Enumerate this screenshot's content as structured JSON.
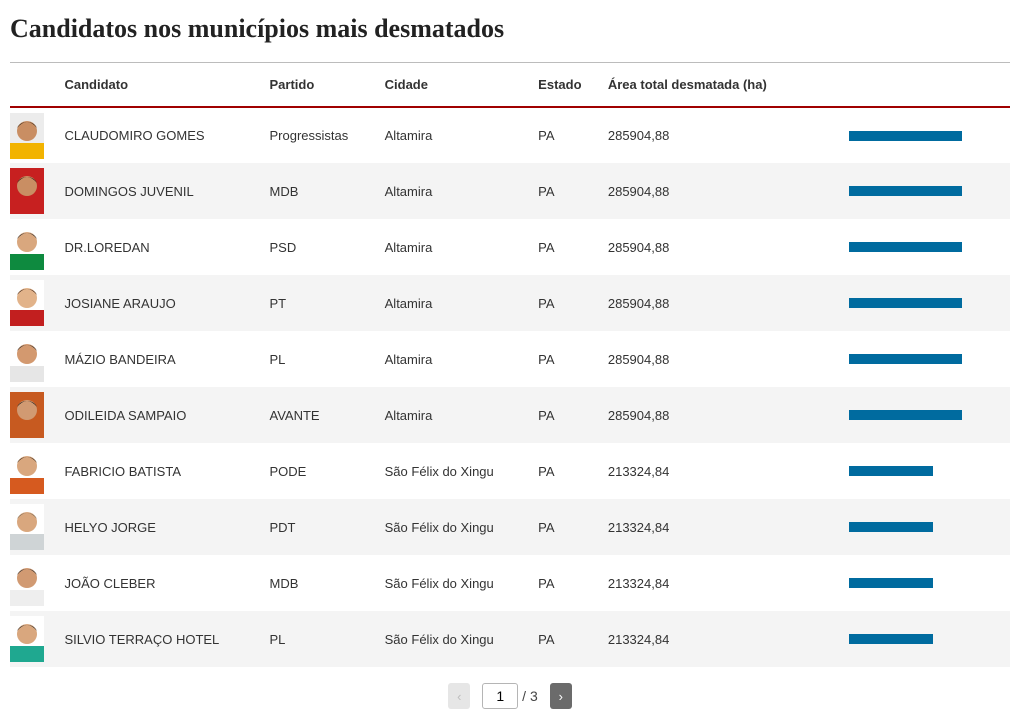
{
  "title": "Candidatos nos municípios mais desmatados",
  "columns": {
    "photo": "",
    "candidate": "Candidato",
    "party": "Partido",
    "city": "Cidade",
    "state": "Estado",
    "area": "Área total desmatada (ha)",
    "bar": ""
  },
  "bar_max_value": 380000,
  "bar_color": "#006b9f",
  "header_underline_color": "#a00000",
  "row_alt_bg": "#f4f4f4",
  "rows": [
    {
      "candidate": "CLAUDOMIRO GOMES",
      "party": "Progressistas",
      "city": "Altamira",
      "state": "PA",
      "area_value": 285904.88,
      "area_text": "285904,88",
      "avatar": {
        "shirt": "#f2b300",
        "skin": "#c98e63",
        "hair": "#3a2a1a",
        "bg": "#ececec"
      }
    },
    {
      "candidate": "DOMINGOS JUVENIL",
      "party": "MDB",
      "city": "Altamira",
      "state": "PA",
      "area_value": 285904.88,
      "area_text": "285904,88",
      "avatar": {
        "shirt": "#c72020",
        "skin": "#c98e63",
        "hair": "#2a1a10",
        "bg": "#c72020"
      }
    },
    {
      "candidate": "DR.LOREDAN",
      "party": "PSD",
      "city": "Altamira",
      "state": "PA",
      "area_value": 285904.88,
      "area_text": "285904,88",
      "avatar": {
        "shirt": "#0e8a3f",
        "skin": "#d9a77e",
        "hair": "#2a2a2a",
        "bg": "#ffffff"
      }
    },
    {
      "candidate": "JOSIANE ARAUJO",
      "party": "PT",
      "city": "Altamira",
      "state": "PA",
      "area_value": 285904.88,
      "area_text": "285904,88",
      "avatar": {
        "shirt": "#c21f1f",
        "skin": "#e2b38a",
        "hair": "#3a1f12",
        "bg": "#ffffff"
      }
    },
    {
      "candidate": "MÁZIO BANDEIRA",
      "party": "PL",
      "city": "Altamira",
      "state": "PA",
      "area_value": 285904.88,
      "area_text": "285904,88",
      "avatar": {
        "shirt": "#e6e6e6",
        "skin": "#d3996f",
        "hair": "#2a2a2a",
        "bg": "#ffffff"
      }
    },
    {
      "candidate": "ODILEIDA SAMPAIO",
      "party": "AVANTE",
      "city": "Altamira",
      "state": "PA",
      "area_value": 285904.88,
      "area_text": "285904,88",
      "avatar": {
        "shirt": "#c75a20",
        "skin": "#d19a72",
        "hair": "#1a1a1a",
        "bg": "#c75a20"
      }
    },
    {
      "candidate": "FABRICIO BATISTA",
      "party": "PODE",
      "city": "São Félix do Xingu",
      "state": "PA",
      "area_value": 213324.84,
      "area_text": "213324,84",
      "avatar": {
        "shirt": "#d65a1f",
        "skin": "#d9a77e",
        "hair": "#3a2a1a",
        "bg": "#ffffff"
      }
    },
    {
      "candidate": "HELYO JORGE",
      "party": "PDT",
      "city": "São Félix do Xingu",
      "state": "PA",
      "area_value": 213324.84,
      "area_text": "213324,84",
      "avatar": {
        "shirt": "#cfd4d6",
        "skin": "#d9a77e",
        "hair": "#7a6a55",
        "bg": "#ffffff"
      }
    },
    {
      "candidate": "JOÃO CLEBER",
      "party": "MDB",
      "city": "São Félix do Xingu",
      "state": "PA",
      "area_value": 213324.84,
      "area_text": "213324,84",
      "avatar": {
        "shirt": "#eeeeee",
        "skin": "#d19a72",
        "hair": "#2a2a2a",
        "bg": "#ffffff"
      }
    },
    {
      "candidate": "SILVIO TERRAÇO HOTEL",
      "party": "PL",
      "city": "São Félix do Xingu",
      "state": "PA",
      "area_value": 213324.84,
      "area_text": "213324,84",
      "avatar": {
        "shirt": "#1fa890",
        "skin": "#d9a77e",
        "hair": "#2a2a2a",
        "bg": "#ffffff"
      }
    }
  ],
  "pagination": {
    "prev_label": "‹",
    "next_label": "›",
    "current_page": "1",
    "separator": "/",
    "total_pages": "3",
    "prev_enabled": false,
    "next_enabled": true
  }
}
